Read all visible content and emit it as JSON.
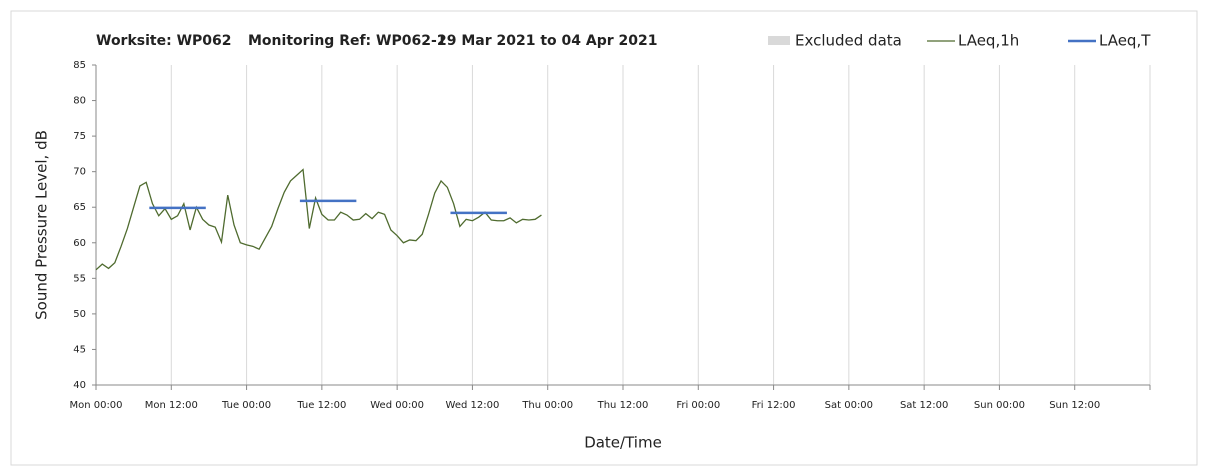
{
  "chart_data": {
    "type": "line",
    "title": [
      "Worksite: WP062",
      "Monitoring Ref: WP062-1",
      "29 Mar 2021 to 04 Apr 2021"
    ],
    "xlabel": "Date/Time",
    "ylabel": "Sound Pressure Level, dB",
    "xlim": [
      0,
      168
    ],
    "xticks": [
      {
        "value": 0,
        "label": "Mon 00:00"
      },
      {
        "value": 12,
        "label": "Mon 12:00"
      },
      {
        "value": 24,
        "label": "Tue 00:00"
      },
      {
        "value": 36,
        "label": "Tue 12:00"
      },
      {
        "value": 48,
        "label": "Wed 00:00"
      },
      {
        "value": 60,
        "label": "Wed 12:00"
      },
      {
        "value": 72,
        "label": "Thu 00:00"
      },
      {
        "value": 84,
        "label": "Thu 12:00"
      },
      {
        "value": 96,
        "label": "Fri 00:00"
      },
      {
        "value": 108,
        "label": "Fri 12:00"
      },
      {
        "value": 120,
        "label": "Sat 00:00"
      },
      {
        "value": 132,
        "label": "Sat 12:00"
      },
      {
        "value": 144,
        "label": "Sun 00:00"
      },
      {
        "value": 156,
        "label": "Sun 12:00"
      },
      {
        "value": 168,
        "label": ""
      }
    ],
    "ylim": [
      40,
      85
    ],
    "yticks": [
      40,
      45,
      50,
      55,
      60,
      65,
      70,
      75,
      80,
      85
    ],
    "grid": "x",
    "excluded": {
      "name": "Excluded data",
      "color": "#d9d9d9"
    },
    "series": [
      {
        "name": "LAeq,1h",
        "color": "#4f6b2f",
        "x": [
          0,
          1,
          2,
          3,
          4,
          5,
          6,
          7,
          8,
          9,
          10,
          11,
          12,
          13,
          14,
          15,
          16,
          17,
          18,
          19,
          20,
          21,
          22,
          23,
          24,
          25,
          26,
          27,
          28,
          29,
          30,
          31,
          32,
          33,
          34,
          35,
          36,
          37,
          38,
          39,
          40,
          41,
          42,
          43,
          44,
          45,
          46,
          47,
          48,
          49,
          50,
          51,
          52,
          53,
          54,
          55,
          56,
          57,
          58,
          59,
          60,
          61,
          62,
          63,
          64,
          65,
          66,
          67,
          68,
          69,
          70,
          71
        ],
        "values": [
          56.2,
          57.0,
          56.4,
          57.2,
          59.5,
          62,
          65,
          68,
          68.5,
          65.5,
          63.8,
          64.8,
          63.3,
          63.8,
          65.5,
          61.8,
          65,
          63.3,
          62.5,
          62.2,
          60.1,
          66.7,
          62.5,
          60,
          59.7,
          59.5,
          59.1,
          60.7,
          62.3,
          64.8,
          67.1,
          68.7,
          69.5,
          70.3,
          62,
          66.3,
          64,
          63.2,
          63.2,
          64.3,
          63.9,
          63.2,
          63.3,
          64.1,
          63.4,
          64.3,
          64,
          61.8,
          61,
          60,
          60.4,
          60.3,
          61.2,
          64,
          67,
          68.7,
          67.8,
          65.5,
          62.3,
          63.3,
          63.1,
          63.6,
          64.3,
          63.2,
          63.1,
          63.1,
          63.5,
          62.8,
          63.3,
          63.2,
          63.3,
          63.9
        ]
      },
      {
        "name": "LAeq,T",
        "color": "#4472c4",
        "segments": [
          {
            "x": [
              8.5,
              17.5
            ],
            "value": 64.9
          },
          {
            "x": [
              32.5,
              41.5
            ],
            "value": 65.9
          },
          {
            "x": [
              56.5,
              65.5
            ],
            "value": 64.2
          }
        ]
      }
    ]
  }
}
